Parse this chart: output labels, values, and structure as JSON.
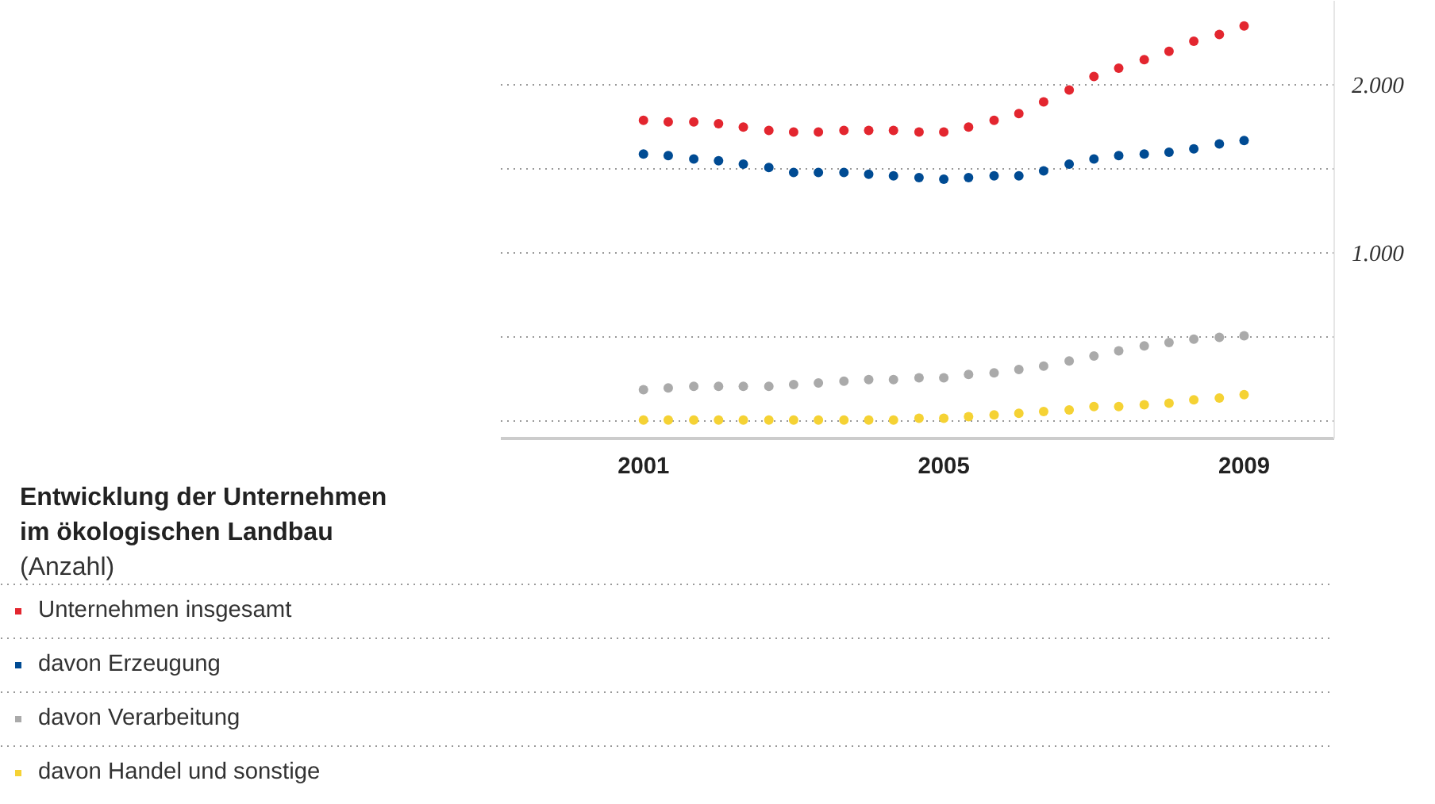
{
  "chart_data": {
    "type": "scatter",
    "title": "Entwicklung der Unternehmen\nim ökologischen Landbau",
    "subtitle": "(Anzahl)",
    "x": [
      2001,
      2001.33,
      2001.67,
      2002,
      2002.33,
      2002.67,
      2003,
      2003.33,
      2003.67,
      2004,
      2004.33,
      2004.67,
      2005,
      2005.33,
      2005.67,
      2006,
      2006.33,
      2006.67,
      2007,
      2007.33,
      2007.67,
      2008,
      2008.33,
      2008.67,
      2009
    ],
    "series": [
      {
        "name": "Unternehmen insgesamt",
        "color": "#e3262f",
        "values": [
          1790,
          1780,
          1780,
          1770,
          1750,
          1730,
          1720,
          1720,
          1730,
          1730,
          1730,
          1720,
          1720,
          1750,
          1790,
          1830,
          1900,
          1970,
          2050,
          2100,
          2150,
          2200,
          2260,
          2300,
          2350
        ]
      },
      {
        "name": "davon Erzeugung",
        "color": "#004b93",
        "values": [
          1590,
          1580,
          1560,
          1550,
          1530,
          1510,
          1480,
          1480,
          1480,
          1470,
          1460,
          1450,
          1440,
          1450,
          1460,
          1460,
          1490,
          1530,
          1560,
          1580,
          1590,
          1600,
          1620,
          1650,
          1670
        ]
      },
      {
        "name": "davon Verarbeitung",
        "color": "#aaaaaa",
        "values": [
          190,
          200,
          210,
          210,
          210,
          210,
          220,
          230,
          240,
          250,
          250,
          260,
          260,
          280,
          290,
          310,
          330,
          360,
          390,
          420,
          450,
          470,
          490,
          500,
          510
        ]
      },
      {
        "name": "davon Handel und sonstige",
        "color": "#f5d234",
        "values": [
          10,
          10,
          10,
          10,
          10,
          10,
          10,
          10,
          10,
          10,
          10,
          20,
          20,
          30,
          40,
          50,
          60,
          70,
          90,
          90,
          100,
          110,
          130,
          140,
          160
        ]
      }
    ],
    "xlim": [
      1999.1,
      2010.2
    ],
    "xticks": [
      2001,
      2005,
      2009
    ],
    "yticks": [
      {
        "value": 0,
        "label": null
      },
      {
        "value": 500,
        "label": null
      },
      {
        "value": 1000,
        "label": "1.000"
      },
      {
        "value": 1500,
        "label": null
      },
      {
        "value": 2000,
        "label": "2.000"
      }
    ],
    "ylim": [
      -100,
      2500
    ],
    "grid": "y",
    "legend": "bottom",
    "marker": "circle"
  }
}
